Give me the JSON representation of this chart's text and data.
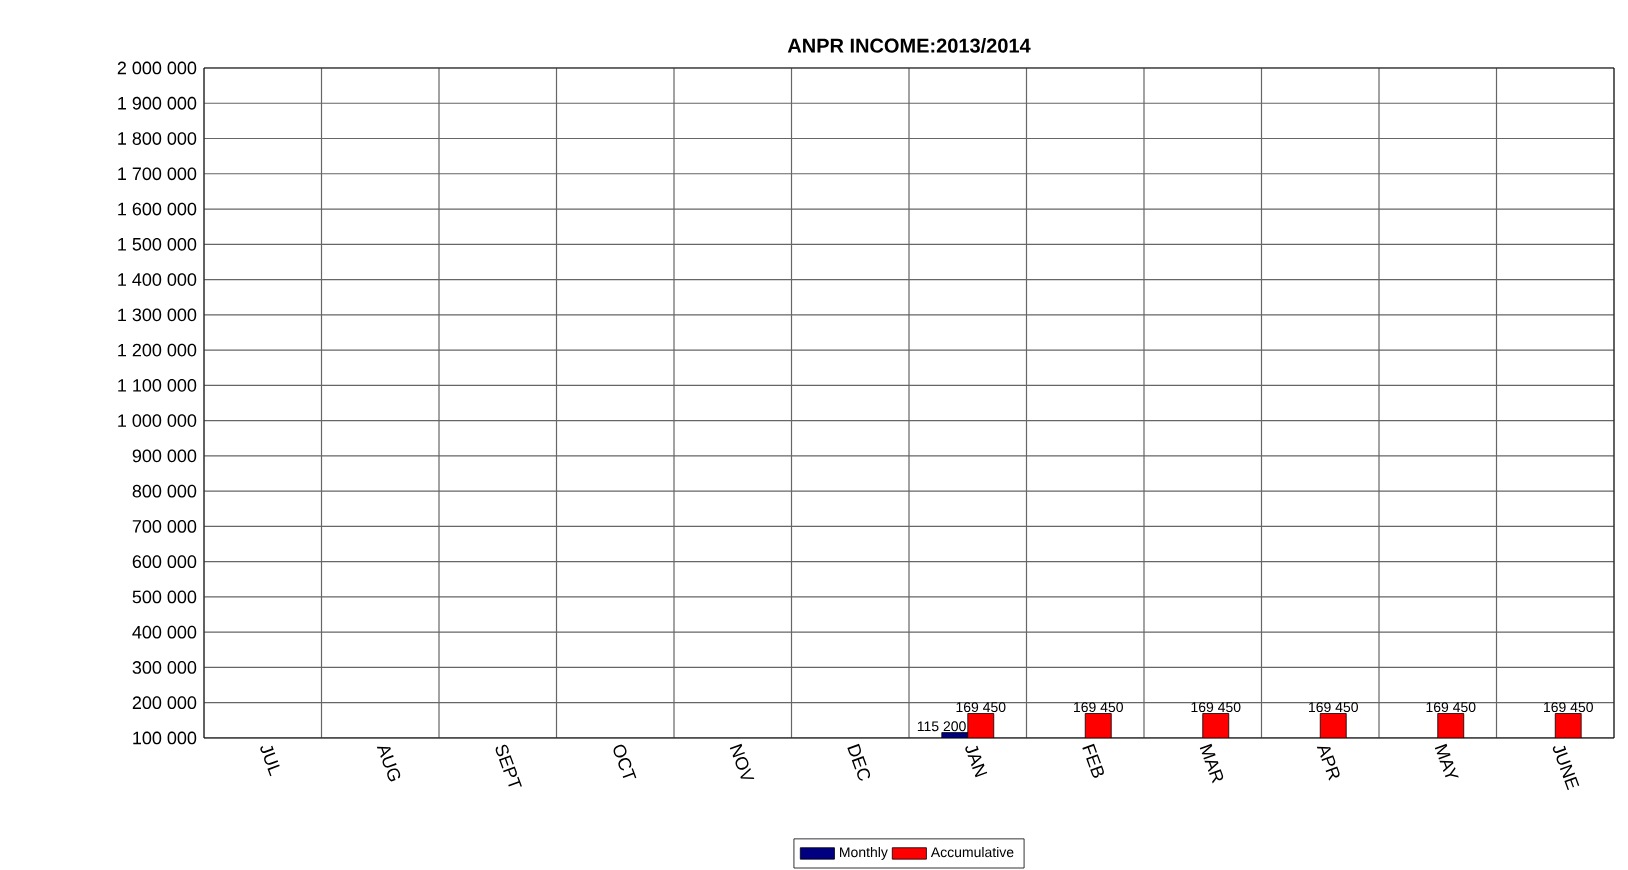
{
  "chart_data": {
    "type": "bar",
    "title": "ANPR INCOME:2013/2014",
    "categories": [
      "JUL",
      "AUG",
      "SEPT",
      "OCT",
      "NOV",
      "DEC",
      "JAN",
      "FEB",
      "MAR",
      "APR",
      "MAY",
      "JUNE"
    ],
    "series": [
      {
        "name": "Monthly",
        "color": "#000080",
        "values": [
          null,
          null,
          null,
          null,
          null,
          null,
          115200,
          null,
          null,
          null,
          null,
          null
        ],
        "value_labels": [
          null,
          null,
          null,
          null,
          null,
          null,
          "115 200",
          null,
          null,
          null,
          null,
          null
        ]
      },
      {
        "name": "Accumulative",
        "color": "#ff0000",
        "values": [
          null,
          null,
          null,
          null,
          null,
          null,
          169450,
          169450,
          169450,
          169450,
          169450,
          169450
        ],
        "value_labels": [
          null,
          null,
          null,
          null,
          null,
          null,
          "169 450",
          "169 450",
          "169 450",
          "169 450",
          "169 450",
          "169 450"
        ]
      }
    ],
    "ylim": [
      100000,
      2000000
    ],
    "yticks": [
      {
        "value": 100000,
        "label": "100 000"
      },
      {
        "value": 200000,
        "label": "200 000"
      },
      {
        "value": 300000,
        "label": "300 000"
      },
      {
        "value": 400000,
        "label": "400 000"
      },
      {
        "value": 500000,
        "label": "500 000"
      },
      {
        "value": 600000,
        "label": "600 000"
      },
      {
        "value": 700000,
        "label": "700 000"
      },
      {
        "value": 800000,
        "label": "800 000"
      },
      {
        "value": 900000,
        "label": "900 000"
      },
      {
        "value": 1000000,
        "label": "1 000 000"
      },
      {
        "value": 1100000,
        "label": "1 100 000"
      },
      {
        "value": 1200000,
        "label": "1 200 000"
      },
      {
        "value": 1300000,
        "label": "1 300 000"
      },
      {
        "value": 1400000,
        "label": "1 400 000"
      },
      {
        "value": 1500000,
        "label": "1 500 000"
      },
      {
        "value": 1600000,
        "label": "1 600 000"
      },
      {
        "value": 1700000,
        "label": "1 700 000"
      },
      {
        "value": 1800000,
        "label": "1 800 000"
      },
      {
        "value": 1900000,
        "label": "1 900 000"
      },
      {
        "value": 2000000,
        "label": "2 000 000"
      }
    ],
    "grid": true,
    "legend": "bottom"
  }
}
